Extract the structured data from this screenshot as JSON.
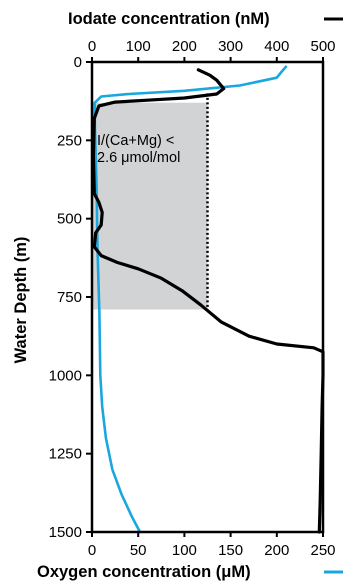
{
  "chart_data": {
    "type": "line",
    "top_axis_title": "Iodate concentration (nM)",
    "bottom_axis_title": "Oxygen concentration (μM)",
    "y_axis_title": "Water Depth (m)",
    "annotation_lines": [
      "I/(Ca+Mg) <",
      "2.6 μmol/mol"
    ],
    "ylim": [
      1500,
      0
    ],
    "yticks": [
      0,
      250,
      500,
      750,
      1000,
      1250,
      1500
    ],
    "top_xlim": [
      0,
      500
    ],
    "top_xticks": [
      0,
      100,
      200,
      300,
      400,
      500
    ],
    "bottom_xlim": [
      0,
      250
    ],
    "bottom_xticks": [
      0,
      50,
      100,
      150,
      200,
      250
    ],
    "shaded_region": {
      "iodate_min": 0,
      "iodate_max": 250,
      "depth_min": 130,
      "depth_max": 790
    },
    "threshold_line": {
      "iodate": 250,
      "depth_min": 100,
      "depth_max": 790
    },
    "series": [
      {
        "axis": "top",
        "color": "#000000",
        "points": [
          [
            230,
            25
          ],
          [
            255,
            42
          ],
          [
            270,
            58
          ],
          [
            285,
            85
          ],
          [
            270,
            102
          ],
          [
            200,
            115
          ],
          [
            120,
            122
          ],
          [
            50,
            128
          ],
          [
            15,
            140
          ],
          [
            5,
            180
          ],
          [
            3,
            300
          ],
          [
            5,
            420
          ],
          [
            15,
            448
          ],
          [
            22,
            480
          ],
          [
            20,
            520
          ],
          [
            8,
            545
          ],
          [
            5,
            590
          ],
          [
            20,
            618
          ],
          [
            55,
            640
          ],
          [
            100,
            660
          ],
          [
            150,
            690
          ],
          [
            195,
            730
          ],
          [
            235,
            775
          ],
          [
            280,
            830
          ],
          [
            340,
            875
          ],
          [
            400,
            900
          ],
          [
            480,
            912
          ],
          [
            500,
            925
          ],
          [
            500,
            1000
          ],
          [
            498,
            1100
          ],
          [
            496,
            1250
          ],
          [
            494,
            1400
          ],
          [
            492,
            1500
          ]
        ]
      },
      {
        "axis": "bottom",
        "color": "#1aa7e0",
        "points": [
          [
            210,
            15
          ],
          [
            205,
            32
          ],
          [
            200,
            50
          ],
          [
            160,
            75
          ],
          [
            100,
            92
          ],
          [
            40,
            102
          ],
          [
            10,
            110
          ],
          [
            3,
            130
          ],
          [
            3,
            200
          ],
          [
            5,
            400
          ],
          [
            6,
            600
          ],
          [
            8,
            800
          ],
          [
            9,
            1000
          ],
          [
            11,
            1100
          ],
          [
            15,
            1200
          ],
          [
            22,
            1300
          ],
          [
            32,
            1380
          ],
          [
            43,
            1450
          ],
          [
            52,
            1500
          ]
        ]
      }
    ]
  }
}
